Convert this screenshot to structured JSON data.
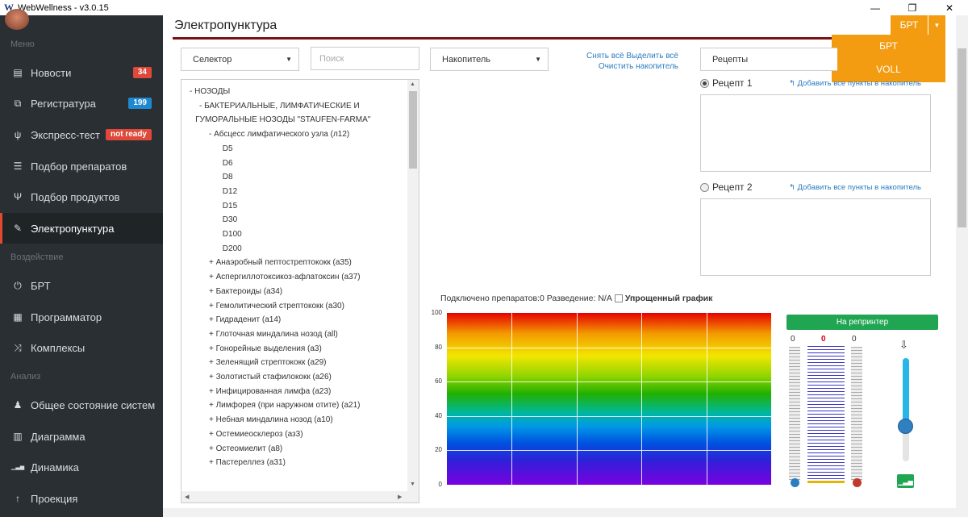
{
  "window": {
    "title": "WebWellness - v3.0.15",
    "minimize": "—",
    "restore": "❐",
    "close": "✕"
  },
  "sidebar": {
    "sections": [
      "Меню",
      "Воздействие",
      "Анализ"
    ],
    "items": [
      {
        "label": "Новости",
        "icon": "newspaper-icon",
        "glyph": "▤",
        "badge": "34",
        "badge_color": "#e0483a"
      },
      {
        "label": "Регистратура",
        "icon": "registry-icon",
        "glyph": "⧉",
        "badge": "199",
        "badge_color": "#1e88d0"
      },
      {
        "label": "Экспресс-тест",
        "icon": "test-icon",
        "glyph": "ψ",
        "badge": "not ready",
        "badge_color": "#e0483a"
      },
      {
        "label": "Подбор препаратов",
        "icon": "sliders-icon",
        "glyph": "☰",
        "badge": "",
        "badge_color": ""
      },
      {
        "label": "Подбор продуктов",
        "icon": "fork-knife-icon",
        "glyph": "Ψ",
        "badge": "",
        "badge_color": ""
      },
      {
        "label": "Электропунктура",
        "icon": "pencil-icon",
        "glyph": "✎",
        "badge": "",
        "badge_color": ""
      },
      {
        "label": "БРТ",
        "icon": "power-icon",
        "glyph": "⏻",
        "badge": "",
        "badge_color": ""
      },
      {
        "label": "Программатор",
        "icon": "calculator-icon",
        "glyph": "▦",
        "badge": "",
        "badge_color": ""
      },
      {
        "label": "Комплексы",
        "icon": "shuffle-icon",
        "glyph": "⤨",
        "badge": "",
        "badge_color": ""
      },
      {
        "label": "Общее состояние систем",
        "icon": "person-icon",
        "glyph": "♟",
        "badge": "",
        "badge_color": ""
      },
      {
        "label": "Диаграмма",
        "icon": "bar-chart-icon",
        "glyph": "▥",
        "badge": "",
        "badge_color": ""
      },
      {
        "label": "Динамика",
        "icon": "signal-icon",
        "glyph": "▁▃▅",
        "badge": "",
        "badge_color": ""
      },
      {
        "label": "Проекция",
        "icon": "projection-icon",
        "glyph": "↑",
        "badge": "",
        "badge_color": ""
      }
    ],
    "active": "Электропунктура"
  },
  "header": {
    "title": "Электропунктура",
    "mode_button": "БРТ",
    "mode_options": [
      "БРТ",
      "VOLL"
    ]
  },
  "controls": {
    "selector": "Селектор",
    "search_placeholder": "Поиск",
    "accumulator": "Накопитель",
    "links_line1": "Снять всё Выделить всё",
    "links_line2": "Очистить накопитель",
    "recipes": "Рецепты"
  },
  "tree": [
    {
      "text": "-  НОЗОДЫ",
      "indent": 0
    },
    {
      "text": "-  БАКТЕРИАЛЬНЫЕ, ЛИМФАТИЧЕСКИЕ И",
      "indent": 1
    },
    {
      "text": "ГУМОРАЛЬНЫЕ НОЗОДЫ \"STAUFEN-FARMA\"",
      "indent": 0.6
    },
    {
      "text": "-  Абсцесс лимфатического узла (л12)",
      "indent": 2
    },
    {
      "text": "D5",
      "indent": 3.4
    },
    {
      "text": "D6",
      "indent": 3.4
    },
    {
      "text": "D8",
      "indent": 3.4
    },
    {
      "text": "D12",
      "indent": 3.4
    },
    {
      "text": "D15",
      "indent": 3.4
    },
    {
      "text": "D30",
      "indent": 3.4
    },
    {
      "text": "D100",
      "indent": 3.4
    },
    {
      "text": "D200",
      "indent": 3.4
    },
    {
      "text": "+  Анаэробный пептострептококк (а35)",
      "indent": 2
    },
    {
      "text": "+  Аспергиллотоксикоз-афлатоксин (а37)",
      "indent": 2
    },
    {
      "text": "+  Бактероиды (а34)",
      "indent": 2
    },
    {
      "text": "+  Гемолитический стрептококк (а30)",
      "indent": 2
    },
    {
      "text": "+  Гидраденит (а14)",
      "indent": 2
    },
    {
      "text": "+  Глоточная миндалина нозод (all)",
      "indent": 2
    },
    {
      "text": "+  Гонорейные выделения (а3)",
      "indent": 2
    },
    {
      "text": "+  Зеленящий стрептококк (а29)",
      "indent": 2
    },
    {
      "text": "+  Золотистый стафилококк (а26)",
      "indent": 2
    },
    {
      "text": "+  Инфицированная лимфа (а23)",
      "indent": 2
    },
    {
      "text": "+  Лимфорея (при наружном отите) (а21)",
      "indent": 2
    },
    {
      "text": "+  Небная миндалина нозод (а10)",
      "indent": 2
    },
    {
      "text": "+  Остемиеосклероз (аз3)",
      "indent": 2
    },
    {
      "text": "+  Остеомиелит (а8)",
      "indent": 2
    },
    {
      "text": "+  Пастереллез (а31)",
      "indent": 2
    }
  ],
  "recipe1": {
    "label": "Рецепт 1",
    "add": "Добавить все пункты в накопитель",
    "selected": true
  },
  "recipe2": {
    "label": "Рецепт 2",
    "add": "Добавить все пункты в накопитель",
    "selected": false
  },
  "status": {
    "text": "Подключено препаратов:0 Разведение: N/A",
    "checkbox_label": "Упрощенный график",
    "checked": false
  },
  "chart_data": {
    "type": "area",
    "y_ticks": [
      "100",
      "80",
      "60",
      "40",
      "20",
      "0"
    ],
    "ylim": [
      0,
      100
    ],
    "series": [],
    "grid": true
  },
  "repeater": {
    "button": "На репринтер",
    "left_value": "0",
    "center_value": "0",
    "right_value": "0",
    "level": 0.0,
    "slider_level": 0.33
  },
  "colors": {
    "accent": "#f39c12",
    "sidebar_bg": "#2a2f33",
    "active_marker": "#e04a2f",
    "green": "#20a653",
    "header_line": "#7a1414"
  }
}
